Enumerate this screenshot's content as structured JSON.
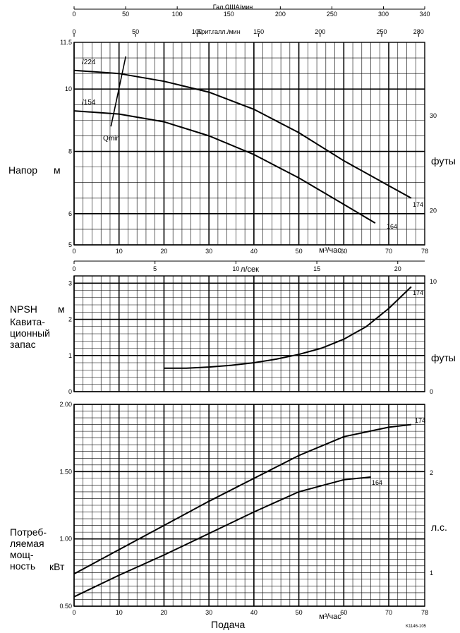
{
  "chart_data": [
    {
      "type": "line",
      "name": "head",
      "ylabel": "Напор",
      "yunit": "м",
      "y2unit": "футы",
      "xlabel": "м³/час",
      "xlim": [
        0,
        78
      ],
      "ylim": [
        5,
        11.5
      ],
      "y_ticks": [
        "5",
        "6",
        "8",
        "10",
        "11.5"
      ],
      "y2_ticks": [
        "20",
        "30"
      ],
      "x_ticks": [
        "0",
        "10",
        "20",
        "30",
        "40",
        "50",
        "60",
        "70",
        "78"
      ],
      "top_axis_1": {
        "label": "Гал.США/мин",
        "ticks": [
          "0",
          "50",
          "100",
          "150",
          "200",
          "250",
          "300",
          "340"
        ]
      },
      "top_axis_2": {
        "label": "Брит.галл./мин",
        "ticks": [
          "0",
          "50",
          "100",
          "150",
          "200",
          "250",
          "280"
        ]
      },
      "series": [
        {
          "name": "174",
          "top_label": "/224",
          "x": [
            0,
            10,
            20,
            30,
            40,
            50,
            60,
            70,
            75
          ],
          "y": [
            10.6,
            10.5,
            10.25,
            9.9,
            9.35,
            8.6,
            7.7,
            6.9,
            6.5
          ]
        },
        {
          "name": "164",
          "top_label": "/154",
          "x": [
            0,
            10,
            20,
            30,
            40,
            50,
            60,
            67
          ],
          "y": [
            9.3,
            9.2,
            8.95,
            8.5,
            7.9,
            7.15,
            6.3,
            5.7
          ]
        }
      ],
      "annotations": [
        "Qmin"
      ]
    },
    {
      "type": "line",
      "name": "npsh",
      "ylabel": "NPSH",
      "yunit": "м",
      "description_text": "Кавита-\nционный\nзапас",
      "y2unit": "футы",
      "xlim": [
        0,
        78
      ],
      "ylim": [
        0,
        3.2
      ],
      "y_ticks": [
        "0",
        "1",
        "2",
        "3"
      ],
      "y2_ticks": [
        "0",
        "10"
      ],
      "top_axis": {
        "label": "л/сек",
        "ticks": [
          "0",
          "5",
          "10",
          "15",
          "20"
        ]
      },
      "series": [
        {
          "name": "174",
          "x": [
            20,
            25,
            30,
            35,
            40,
            45,
            50,
            55,
            60,
            65,
            70,
            75
          ],
          "y": [
            0.65,
            0.65,
            0.68,
            0.73,
            0.8,
            0.9,
            1.03,
            1.2,
            1.45,
            1.8,
            2.3,
            2.9
          ]
        }
      ]
    },
    {
      "type": "line",
      "name": "power",
      "ylabel": "Потреб-\nляемая\nмощ-\nность",
      "yunit": "кВт",
      "y2unit": "л.с.",
      "xlabel": "м³/час",
      "bottom_label": "Подача",
      "xlim": [
        0,
        78
      ],
      "ylim": [
        0.5,
        2.0
      ],
      "y_ticks": [
        "0.50",
        "1.00",
        "1.50",
        "2.00"
      ],
      "y2_ticks": [
        "1",
        "2"
      ],
      "x_ticks": [
        "0",
        "10",
        "20",
        "30",
        "40",
        "50",
        "60",
        "70",
        "78"
      ],
      "series": [
        {
          "name": "174",
          "x": [
            0,
            10,
            20,
            30,
            40,
            50,
            60,
            70,
            75
          ],
          "y": [
            0.74,
            0.92,
            1.1,
            1.28,
            1.45,
            1.62,
            1.76,
            1.83,
            1.85
          ]
        },
        {
          "name": "164",
          "x": [
            0,
            10,
            20,
            30,
            40,
            50,
            60,
            66
          ],
          "y": [
            0.57,
            0.73,
            0.88,
            1.04,
            1.2,
            1.35,
            1.44,
            1.46
          ]
        }
      ]
    }
  ],
  "footnote": "K1146-105"
}
